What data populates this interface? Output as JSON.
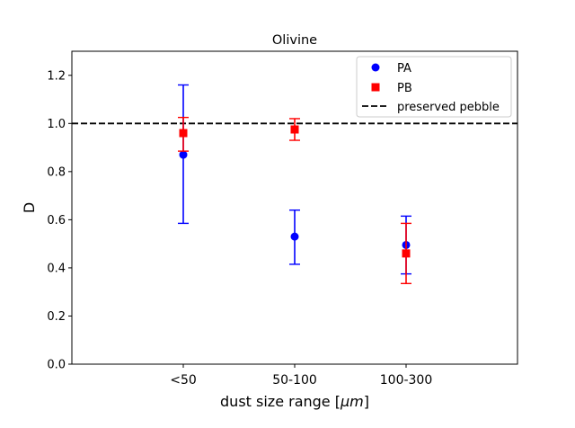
{
  "chart_data": {
    "type": "scatter",
    "title": "Olivine",
    "xlabel": "dust size range [μm]",
    "xlabel_plain": "dust size range [",
    "xlabel_math": "μm",
    "xlabel_close": "]",
    "ylabel": "D",
    "categories": [
      "<50",
      "50-100",
      "100-300"
    ],
    "ylim": [
      0,
      1.3
    ],
    "yticks": [
      0.0,
      0.2,
      0.4,
      0.6,
      0.8,
      1.0,
      1.2
    ],
    "ytick_labels": [
      "0.0",
      "0.2",
      "0.4",
      "0.6",
      "0.8",
      "1.0",
      "1.2"
    ],
    "series": [
      {
        "name": "PA",
        "marker": "circle",
        "color": "#0000ff",
        "offset": 0,
        "values": [
          0.87,
          0.53,
          0.495
        ],
        "err_low": [
          0.585,
          0.415,
          0.375
        ],
        "err_high": [
          1.16,
          0.64,
          0.615
        ]
      },
      {
        "name": "PB",
        "marker": "square",
        "color": "#ff0000",
        "offset": 0,
        "values": [
          0.96,
          0.975,
          0.46
        ],
        "err_low": [
          0.885,
          0.93,
          0.335
        ],
        "err_high": [
          1.025,
          1.02,
          0.585
        ]
      }
    ],
    "reference_line": {
      "name": "preserved pebble",
      "value": 1.0,
      "color": "#000000",
      "style": "dashed"
    },
    "legend": {
      "position": "top-right",
      "entries": [
        "PA",
        "PB",
        "preserved pebble"
      ]
    },
    "grid": false
  }
}
